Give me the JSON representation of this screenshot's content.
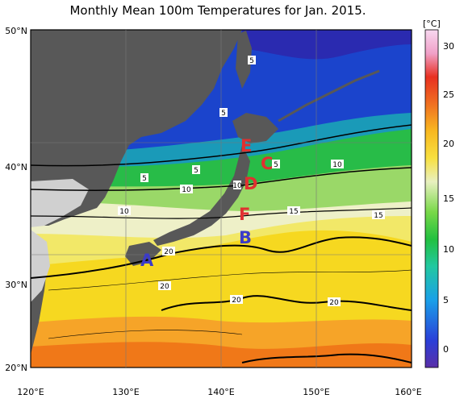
{
  "title": "Monthly Mean 100m Temperatures for Jan. 2015.",
  "unit_label": "[°C]",
  "colorbar_ticks": [
    "30",
    "25",
    "20",
    "15",
    "10",
    "5",
    "0"
  ],
  "lat_labels": [
    "50°N",
    "40°N",
    "30°N",
    "20°N"
  ],
  "lon_labels": [
    "120°E",
    "130°E",
    "140°E",
    "150°E",
    "160°E"
  ],
  "contour_labels": [
    "5",
    "5",
    "5",
    "5",
    "10",
    "10",
    "10",
    "10",
    "15",
    "15",
    "20",
    "20",
    "20",
    "20",
    "5"
  ],
  "sites": [
    {
      "label": "A",
      "color": "#3b3bc8"
    },
    {
      "label": "B",
      "color": "#3b3bc8"
    },
    {
      "label": "C",
      "color": "#e03030"
    },
    {
      "label": "D",
      "color": "#e03030"
    },
    {
      "label": "E",
      "color": "#e03030"
    },
    {
      "label": "F",
      "color": "#e03030"
    }
  ],
  "colors": {
    "land_dark": "#585858",
    "land_light": "#d0d0d0",
    "sea_cold": "#1538c8",
    "sea_cool": "#22b840",
    "sea_mid": "#e8f0c8",
    "sea_warm": "#f2d818",
    "sea_hot": "#f07818"
  }
}
